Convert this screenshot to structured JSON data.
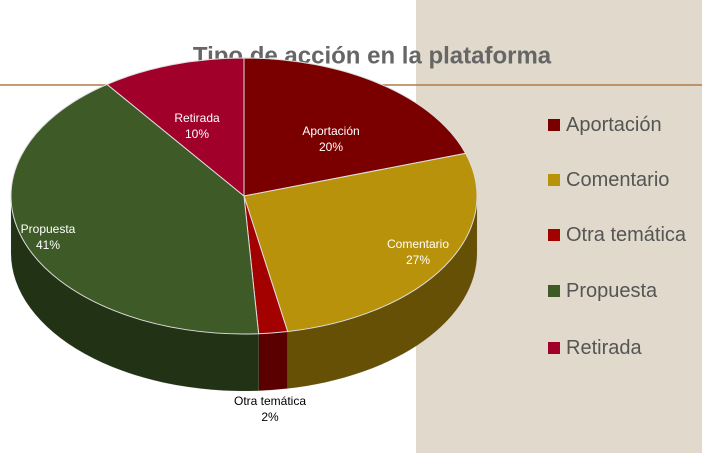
{
  "chart_data": {
    "type": "pie",
    "title": "Tipo de acción en la plataforma",
    "categories": [
      "Aportación",
      "Comentario",
      "Otra temática",
      "Propuesta",
      "Retirada"
    ],
    "values": [
      20,
      27,
      2,
      41,
      10
    ],
    "value_labels": [
      "20%",
      "27%",
      "2%",
      "41%",
      "10%"
    ],
    "colors": [
      "#7a0000",
      "#b8920a",
      "#a30000",
      "#3d5a27",
      "#a1002b"
    ],
    "legend": "right"
  }
}
